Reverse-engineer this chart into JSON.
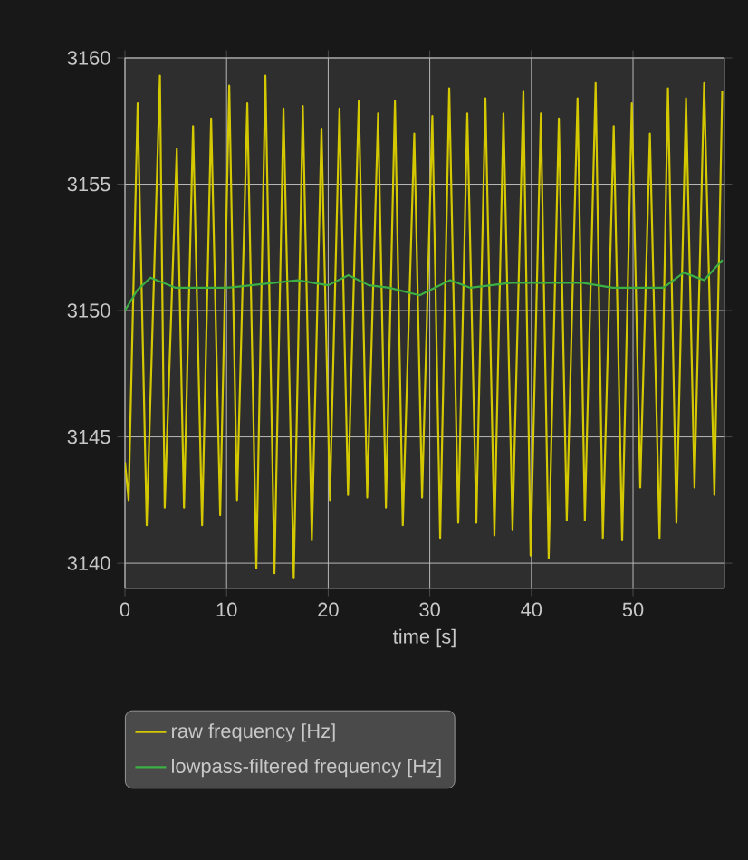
{
  "chart_data": {
    "type": "line",
    "xlabel": "time [s]",
    "xlim": [
      0,
      59
    ],
    "ylim": [
      3139,
      3160
    ],
    "xticks": [
      0,
      10,
      20,
      30,
      40,
      50
    ],
    "yticks": [
      3140,
      3145,
      3150,
      3155,
      3160
    ],
    "grid": true,
    "legend": "bottom",
    "marker": "none",
    "line_style": "solid",
    "series": [
      {
        "name": "raw frequency [Hz]",
        "color": "#d4c800",
        "x": [
          0,
          0.36,
          1.25,
          2.14,
          3.44,
          3.91,
          5.1,
          5.81,
          6.7,
          7.59,
          8.48,
          9.37,
          10.26,
          11.03,
          12.04,
          12.93,
          13.82,
          14.71,
          15.6,
          16.61,
          17.5,
          18.39,
          19.34,
          20.17,
          21.11,
          21.95,
          23.01,
          23.84,
          24.91,
          25.68,
          26.57,
          27.34,
          28.47,
          29.24,
          30.25,
          31.02,
          31.91,
          32.8,
          33.69,
          34.58,
          35.47,
          36.36,
          37.25,
          38.14,
          39.21,
          39.92,
          40.93,
          41.7,
          42.7,
          43.48,
          44.54,
          45.26,
          46.32,
          47.03,
          48.1,
          48.93,
          49.88,
          50.71,
          51.66,
          52.61,
          53.44,
          54.27,
          55.22,
          56.05,
          57.0,
          58.01,
          58.78
        ],
        "values": [
          3144,
          3142.5,
          3158.2,
          3141.5,
          3159.3,
          3142.2,
          3156.4,
          3142.2,
          3157.3,
          3141.5,
          3157.6,
          3141.9,
          3158.9,
          3142.5,
          3158.2,
          3139.8,
          3159.3,
          3139.6,
          3158.0,
          3139.4,
          3158.1,
          3140.9,
          3157.2,
          3142.5,
          3158.0,
          3142.7,
          3158.3,
          3142.6,
          3157.8,
          3142.2,
          3158.3,
          3141.5,
          3157.0,
          3142.6,
          3157.7,
          3141.0,
          3158.8,
          3141.6,
          3157.8,
          3141.6,
          3158.4,
          3141.1,
          3157.8,
          3141.3,
          3158.7,
          3140.3,
          3157.8,
          3140.2,
          3157.6,
          3141.7,
          3158.4,
          3141.7,
          3159.0,
          3141.0,
          3157.3,
          3140.9,
          3158.2,
          3143.0,
          3157.0,
          3141.0,
          3158.8,
          3141.6,
          3158.4,
          3143.0,
          3159.0,
          3142.7,
          3158.7
        ]
      },
      {
        "name": "lowpass-filtered frequency [Hz]",
        "color": "#3cb043",
        "x": [
          0,
          1.2,
          2.5,
          5,
          8,
          10,
          14.7,
          17,
          20,
          22,
          24,
          26,
          29,
          32,
          34,
          38,
          42,
          45,
          48,
          50,
          53,
          55,
          57,
          58.8
        ],
        "values": [
          3150,
          3150.8,
          3151.3,
          3150.9,
          3150.9,
          3150.9,
          3151.1,
          3151.2,
          3151.0,
          3151.4,
          3151.0,
          3150.9,
          3150.6,
          3151.2,
          3150.9,
          3151.1,
          3151.1,
          3151.1,
          3150.9,
          3150.9,
          3150.9,
          3151.5,
          3151.2,
          3152.0
        ]
      }
    ]
  }
}
